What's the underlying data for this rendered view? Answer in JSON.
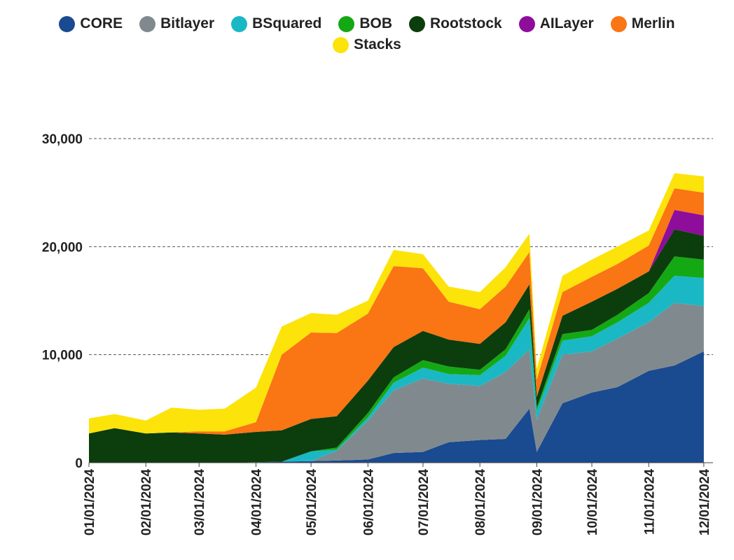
{
  "chart_data": {
    "type": "area",
    "stacked": true,
    "legend_position": "top-center",
    "grid": "horizontal dashed",
    "x_tick_labels": [
      "01/01/2024",
      "02/01/2024",
      "03/01/2024",
      "04/01/2024",
      "05/01/2024",
      "06/01/2024",
      "07/01/2024",
      "08/01/2024",
      "09/01/2024",
      "10/01/2024",
      "11/01/2024",
      "12/01/2024"
    ],
    "y_ticks": [
      0,
      10000,
      20000,
      30000
    ],
    "y_tick_labels": [
      "0",
      "10,000",
      "20,000",
      "30,000"
    ],
    "ylim": [
      0,
      30000
    ],
    "x": [
      "2024-01-01",
      "2024-01-15",
      "2024-02-01",
      "2024-02-15",
      "2024-03-01",
      "2024-03-15",
      "2024-04-01",
      "2024-04-15",
      "2024-05-01",
      "2024-05-15",
      "2024-06-01",
      "2024-06-15",
      "2024-07-01",
      "2024-07-15",
      "2024-08-01",
      "2024-08-15",
      "2024-08-28",
      "2024-09-01",
      "2024-09-15",
      "2024-10-01",
      "2024-10-15",
      "2024-11-01",
      "2024-11-15",
      "2024-12-01"
    ],
    "series": [
      {
        "name": "CORE",
        "color": "#1a4a8f",
        "values": [
          0,
          0,
          0,
          0,
          0,
          0,
          50,
          100,
          150,
          200,
          300,
          900,
          1000,
          1900,
          2100,
          2200,
          5000,
          1000,
          5500,
          6500,
          7000,
          8500,
          9000,
          10300
        ]
      },
      {
        "name": "Bitlayer",
        "color": "#808a8e",
        "values": [
          0,
          0,
          0,
          0,
          0,
          0,
          0,
          0,
          0,
          900,
          3600,
          5800,
          6800,
          5400,
          5000,
          6200,
          5500,
          3000,
          4500,
          3800,
          4500,
          4500,
          5800,
          4200
        ]
      },
      {
        "name": "BSquared",
        "color": "#1ab8c4",
        "values": [
          0,
          0,
          0,
          0,
          0,
          0,
          0,
          0,
          900,
          100,
          300,
          700,
          1000,
          900,
          1000,
          1500,
          2900,
          800,
          1300,
          1400,
          1500,
          1800,
          2500,
          2600
        ]
      },
      {
        "name": "BOB",
        "color": "#15a815",
        "values": [
          0,
          0,
          0,
          0,
          0,
          0,
          0,
          0,
          0,
          200,
          400,
          500,
          700,
          700,
          500,
          600,
          800,
          300,
          600,
          600,
          700,
          900,
          1800,
          1700
        ]
      },
      {
        "name": "Rootstock",
        "color": "#0c3d0c",
        "values": [
          2700,
          3200,
          2700,
          2800,
          2700,
          2600,
          2800,
          2900,
          3000,
          2900,
          3000,
          2800,
          2700,
          2500,
          2400,
          2500,
          2300,
          1000,
          1700,
          2600,
          2400,
          2000,
          2500,
          2200
        ]
      },
      {
        "name": "AILayer",
        "color": "#8e0d9b",
        "values": [
          0,
          0,
          0,
          0,
          0,
          0,
          0,
          0,
          0,
          0,
          0,
          0,
          0,
          0,
          0,
          0,
          0,
          0,
          0,
          0,
          0,
          0,
          1800,
          1900
        ]
      },
      {
        "name": "Merlin",
        "color": "#fa7514",
        "values": [
          0,
          0,
          0,
          0,
          200,
          300,
          900,
          7000,
          8000,
          7700,
          6200,
          7500,
          5800,
          3500,
          3200,
          3300,
          3000,
          1600,
          2200,
          2300,
          2300,
          2400,
          2000,
          2100
        ]
      },
      {
        "name": "Stacks",
        "color": "#fce30a",
        "values": [
          1400,
          1300,
          1200,
          2300,
          2000,
          2100,
          3200,
          2600,
          1800,
          1700,
          1200,
          1500,
          1300,
          1400,
          1600,
          1800,
          1700,
          1000,
          1500,
          1600,
          1600,
          1400,
          1400,
          1500
        ]
      }
    ]
  }
}
